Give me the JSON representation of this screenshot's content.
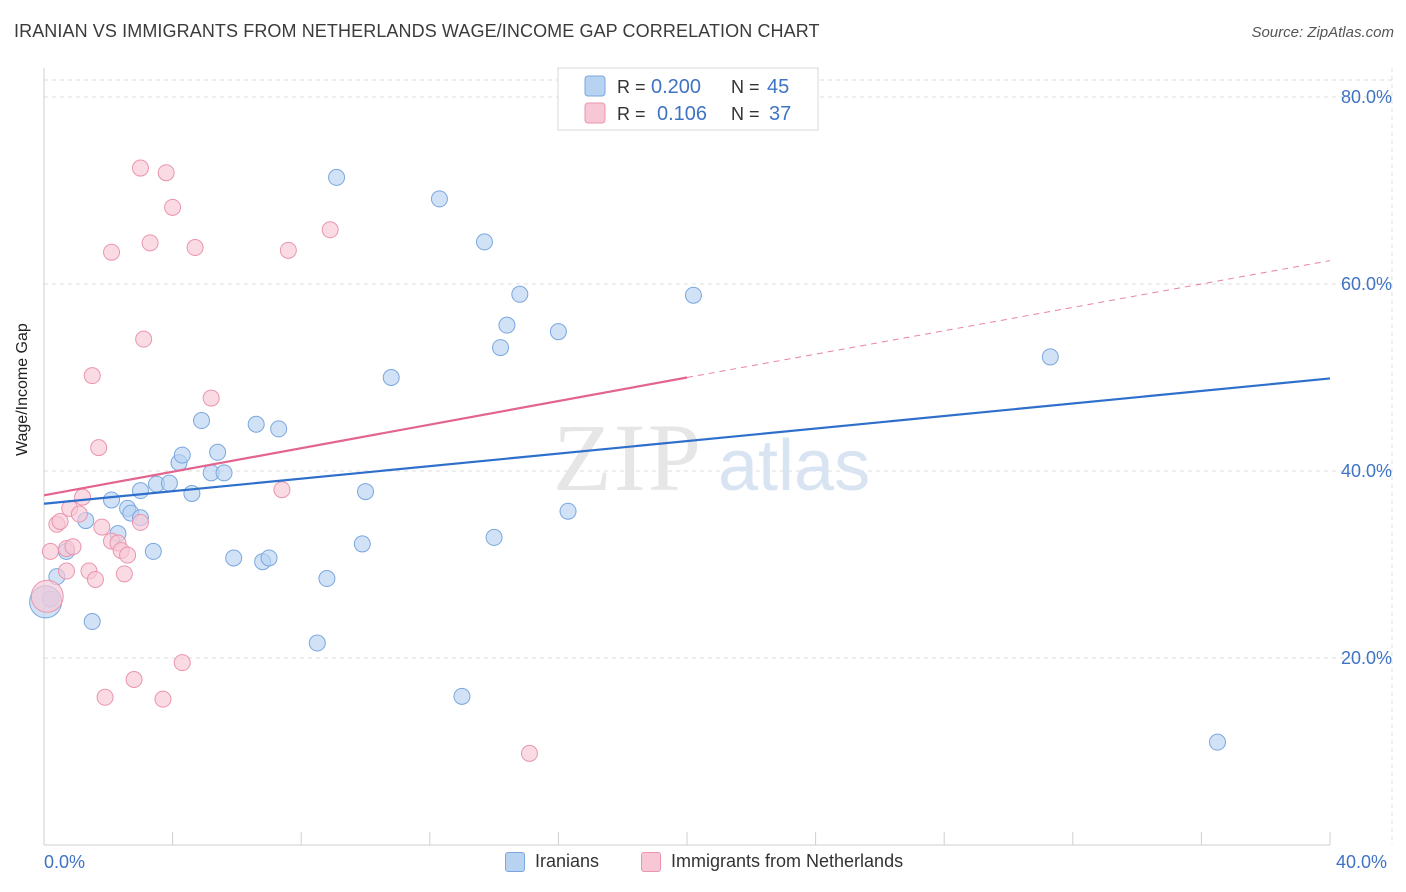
{
  "title": "IRANIAN VS IMMIGRANTS FROM NETHERLANDS WAGE/INCOME GAP CORRELATION CHART",
  "source": "Source: ZipAtlas.com",
  "watermark": {
    "zip": "ZIP",
    "atlas": "atlas"
  },
  "legend_stats": [
    {
      "r_label": "R =",
      "r_value": "0.200",
      "n_label": "N =",
      "n_value": "45"
    },
    {
      "r_label": "R =",
      "r_value": "0.106",
      "n_label": "N =",
      "n_value": "37"
    }
  ],
  "colors": {
    "blue_fill": "#b8d2f2",
    "blue_stroke": "#7aa7de",
    "blue_line": "#2f6fcc",
    "pink_fill": "#f8c7d5",
    "pink_stroke": "#ea95ad",
    "pink_line": "#e2648f",
    "tick_text": "#3f74c4",
    "grid": "#dddddd"
  },
  "chart_data": {
    "type": "scatter",
    "title": "IRANIAN VS IMMIGRANTS FROM NETHERLANDS WAGE/INCOME GAP CORRELATION CHART",
    "xlabel": "",
    "ylabel": "Wage/Income Gap",
    "xlim": [
      0,
      40
    ],
    "ylim": [
      0,
      80
    ],
    "x_tick_labels": [
      "0.0%",
      "40.0%"
    ],
    "y_ticks": [
      20,
      40,
      60,
      80
    ],
    "y_tick_labels": [
      "20.0%",
      "40.0%",
      "60.0%",
      "80.0%"
    ],
    "grid": true,
    "legend_position": "bottom",
    "series": [
      {
        "name": "Iranians",
        "color": "#b8d2f2",
        "r": 0.2,
        "n": 45,
        "trend": {
          "x": [
            0,
            40
          ],
          "y": [
            36.5,
            49.9
          ]
        },
        "points": [
          [
            0.2,
            26.3
          ],
          [
            0.4,
            28.7
          ],
          [
            0.7,
            31.4
          ],
          [
            1.3,
            34.7
          ],
          [
            1.5,
            23.9
          ],
          [
            2.1,
            36.9
          ],
          [
            2.3,
            33.3
          ],
          [
            2.6,
            36.0
          ],
          [
            2.7,
            35.5
          ],
          [
            3.0,
            35.0
          ],
          [
            3.0,
            37.9
          ],
          [
            3.4,
            31.4
          ],
          [
            3.5,
            38.6
          ],
          [
            3.9,
            38.7
          ],
          [
            4.2,
            40.9
          ],
          [
            4.3,
            41.7
          ],
          [
            4.6,
            37.6
          ],
          [
            4.9,
            45.4
          ],
          [
            5.2,
            39.8
          ],
          [
            5.4,
            42.0
          ],
          [
            5.6,
            39.8
          ],
          [
            5.9,
            30.7
          ],
          [
            6.6,
            45.0
          ],
          [
            6.8,
            30.3
          ],
          [
            7.0,
            30.7
          ],
          [
            7.3,
            44.5
          ],
          [
            8.5,
            21.6
          ],
          [
            8.8,
            28.5
          ],
          [
            9.1,
            71.4
          ],
          [
            9.9,
            32.2
          ],
          [
            10.0,
            37.8
          ],
          [
            10.8,
            50.0
          ],
          [
            12.3,
            69.1
          ],
          [
            13.0,
            15.9
          ],
          [
            13.7,
            64.5
          ],
          [
            14.0,
            32.9
          ],
          [
            14.2,
            53.2
          ],
          [
            14.4,
            55.6
          ],
          [
            14.8,
            58.9
          ],
          [
            16.0,
            54.9
          ],
          [
            16.3,
            35.7
          ],
          [
            20.2,
            58.8
          ],
          [
            31.3,
            52.2
          ],
          [
            36.5,
            11.0
          ],
          [
            0.05,
            26.0
          ]
        ]
      },
      {
        "name": "Immigrants from Netherlands",
        "color": "#f8c7d5",
        "r": 0.106,
        "n": 37,
        "trend": {
          "x": [
            0,
            20.0
          ],
          "y": [
            37.4,
            50.0
          ]
        },
        "trend_dashed": {
          "x": [
            20.0,
            40
          ],
          "y": [
            50.0,
            62.5
          ]
        },
        "points": [
          [
            0.1,
            26.6
          ],
          [
            0.2,
            31.4
          ],
          [
            0.4,
            34.3
          ],
          [
            0.5,
            34.6
          ],
          [
            0.7,
            31.7
          ],
          [
            0.7,
            29.3
          ],
          [
            0.8,
            36.0
          ],
          [
            0.9,
            31.9
          ],
          [
            1.1,
            35.4
          ],
          [
            1.2,
            37.2
          ],
          [
            1.4,
            29.3
          ],
          [
            1.5,
            50.2
          ],
          [
            1.6,
            28.4
          ],
          [
            1.7,
            42.5
          ],
          [
            1.8,
            34.0
          ],
          [
            1.9,
            15.8
          ],
          [
            2.1,
            32.5
          ],
          [
            2.1,
            63.4
          ],
          [
            2.3,
            32.3
          ],
          [
            2.4,
            31.5
          ],
          [
            2.5,
            29.0
          ],
          [
            2.6,
            31.0
          ],
          [
            2.8,
            17.7
          ],
          [
            3.0,
            34.5
          ],
          [
            3.0,
            72.4
          ],
          [
            3.1,
            54.1
          ],
          [
            3.3,
            64.4
          ],
          [
            3.7,
            15.6
          ],
          [
            3.8,
            71.9
          ],
          [
            4.0,
            68.2
          ],
          [
            4.3,
            19.5
          ],
          [
            4.7,
            63.9
          ],
          [
            5.2,
            47.8
          ],
          [
            7.4,
            38.0
          ],
          [
            7.6,
            63.6
          ],
          [
            8.9,
            65.8
          ],
          [
            15.1,
            9.8
          ]
        ]
      }
    ]
  },
  "bottom_legend": [
    {
      "label": "Iranians",
      "color": "#b8d2f2",
      "stroke": "#7aa7de"
    },
    {
      "label": "Immigrants from Netherlands",
      "color": "#f8c7d5",
      "stroke": "#ea95ad"
    }
  ]
}
